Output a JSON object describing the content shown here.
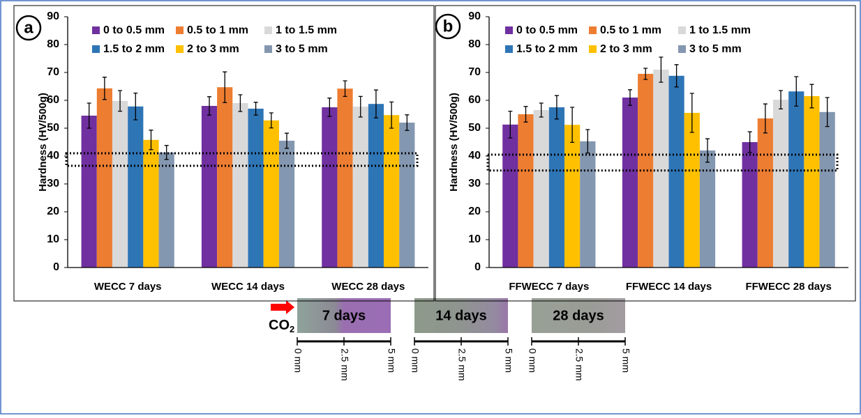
{
  "chart_data": [
    {
      "type": "bar",
      "panel": "a",
      "ylabel": "Hardness  (HV/500g)",
      "categories": [
        "WECC 7 days",
        "WECC 14 days",
        "WECC 28 days"
      ],
      "ylim": [
        0,
        90
      ],
      "yticks": [
        0,
        10,
        20,
        30,
        40,
        50,
        60,
        70,
        80,
        90
      ],
      "series": [
        {
          "name": "0 to 0.5 mm",
          "color": "#7030a0",
          "values": [
            54.5,
            58,
            57.5
          ],
          "errors": [
            4.5,
            3.3,
            3.3
          ]
        },
        {
          "name": "0.5 to 1 mm",
          "color": "#ed7d31",
          "values": [
            64.3,
            64.7,
            64.2
          ],
          "errors": [
            4,
            5.5,
            2.8
          ]
        },
        {
          "name": "1 to 1.5 mm",
          "color": "#d9d9d9",
          "values": [
            59.8,
            59,
            57.7
          ],
          "errors": [
            3.7,
            3,
            3.7
          ]
        },
        {
          "name": "1.5 to 2 mm",
          "color": "#2e75b6",
          "values": [
            57.8,
            57,
            58.7
          ],
          "errors": [
            4.8,
            2.3,
            5
          ]
        },
        {
          "name": "2 to 3 mm",
          "color": "#ffc000",
          "values": [
            45.8,
            52.8,
            54.7
          ],
          "errors": [
            3.5,
            2.7,
            4.7
          ]
        },
        {
          "name": "3 to 5 mm",
          "color": "#8497b0",
          "values": [
            41.3,
            45.5,
            52
          ],
          "errors": [
            2.5,
            2.7,
            2.8
          ]
        }
      ]
    },
    {
      "type": "bar",
      "panel": "b",
      "ylabel": "Hardness (HV/500g)",
      "categories": [
        "FFWECC 7 days",
        "FFWECC 14 days",
        "FFWECC 28 days"
      ],
      "ylim": [
        0,
        90
      ],
      "yticks": [
        0,
        10,
        20,
        30,
        40,
        50,
        60,
        70,
        80,
        90
      ],
      "series": [
        {
          "name": "0 to 0.5 mm",
          "color": "#7030a0",
          "values": [
            51.3,
            61,
            45
          ],
          "errors": [
            4.8,
            2.8,
            3.7
          ]
        },
        {
          "name": "0.5 to 1 mm",
          "color": "#ed7d31",
          "values": [
            55,
            69.5,
            53.5
          ],
          "errors": [
            2.8,
            2,
            5.2
          ]
        },
        {
          "name": "1 to 1.5 mm",
          "color": "#d9d9d9",
          "values": [
            56.5,
            71,
            60.2
          ],
          "errors": [
            2.5,
            4.5,
            3.3
          ]
        },
        {
          "name": "1.5 to 2 mm",
          "color": "#2e75b6",
          "values": [
            57.5,
            68.8,
            63.2
          ],
          "errors": [
            4.2,
            4,
            5.3
          ]
        },
        {
          "name": "2 to 3 mm",
          "color": "#ffc000",
          "values": [
            51.2,
            55.5,
            61.5
          ],
          "errors": [
            6.3,
            7,
            4.2
          ]
        },
        {
          "name": "3 to 5 mm",
          "color": "#8497b0",
          "values": [
            45.3,
            42,
            55.8
          ],
          "errors": [
            4.2,
            4.2,
            5.2
          ]
        }
      ]
    }
  ],
  "samples": {
    "co2": "CO",
    "co2_sub": "2",
    "labels": [
      "7 days",
      "14 days",
      "28 days"
    ],
    "scale_labels": [
      "0 mm",
      "2.5 mm",
      "5 mm"
    ]
  }
}
